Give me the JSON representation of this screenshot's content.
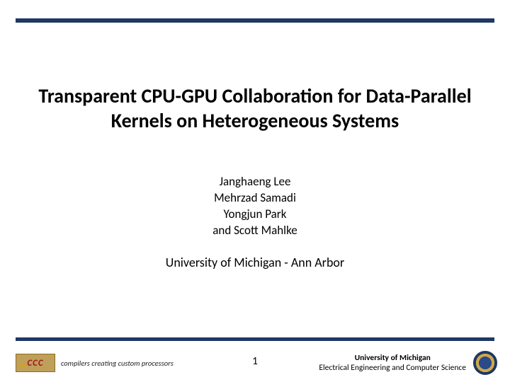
{
  "colors": {
    "bar": "#1f3864",
    "background": "#ffffff",
    "logo_bg": "#bfa05a",
    "logo_border": "#8a6d1f",
    "logo_text": "#a01818"
  },
  "title": "Transparent CPU-GPU Collaboration for Data-Parallel Kernels on Heterogeneous Systems",
  "authors": [
    "Janghaeng Lee",
    "Mehrzad Samadi",
    "Yongjun Park",
    "and Scott Mahlke"
  ],
  "affiliation": "University of Michigan - Ann Arbor",
  "footer": {
    "logo_mark": "CCC",
    "logo_subtext": "compilers creating custom processors",
    "page_number": "1",
    "org_line1": "University of Michigan",
    "org_line2": "Electrical Engineering and Computer Science"
  }
}
